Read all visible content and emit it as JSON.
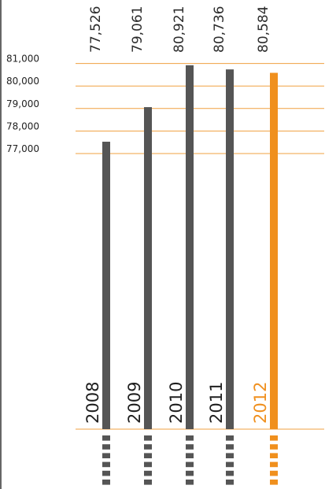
{
  "chart_data": {
    "type": "bar",
    "categories": [
      "2008",
      "2009",
      "2010",
      "2011",
      "2012"
    ],
    "values": [
      77526,
      79061,
      80921,
      80736,
      80584
    ],
    "value_labels": [
      "77,526",
      "79,061",
      "80,921",
      "80,736",
      "80,584"
    ],
    "y_ticks": [
      77000,
      78000,
      79000,
      80000,
      81000
    ],
    "y_tick_labels": [
      "77,000",
      "78,000",
      "79,000",
      "80,000",
      "81,000"
    ],
    "title": "",
    "xlabel": "",
    "ylabel": "",
    "grid": true,
    "highlight_category": "2012",
    "colors": {
      "bar": "#555555",
      "highlight": "#f0901e",
      "gridline": "#f0a040",
      "text": "#222222",
      "axis": "#333333"
    }
  }
}
